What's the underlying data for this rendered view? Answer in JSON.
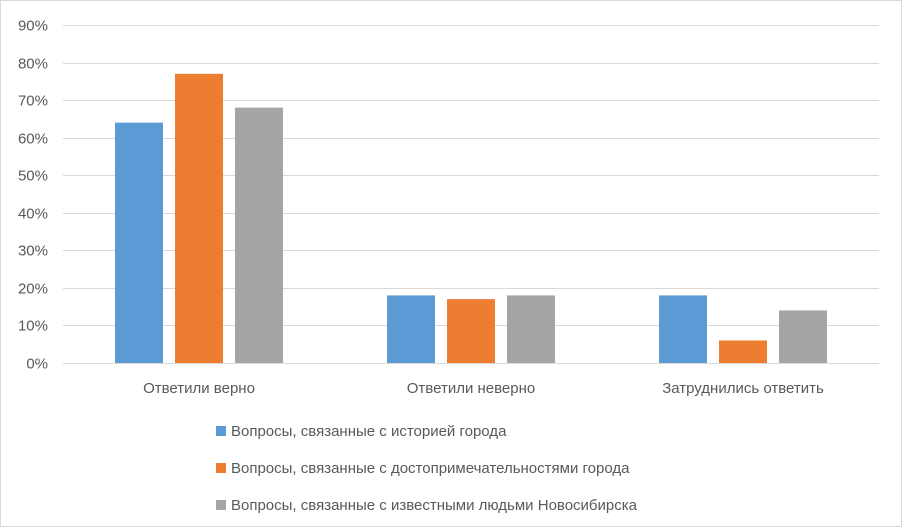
{
  "chart_data": {
    "type": "bar",
    "categories": [
      "Ответили верно",
      "Ответили неверно",
      "Затруднились ответить"
    ],
    "series": [
      {
        "name": "Вопросы, связанные с историей города",
        "values": [
          64,
          18,
          18
        ],
        "color": "#5b9bd5"
      },
      {
        "name": "Вопросы, связанные с достопримечательностями города",
        "values": [
          77,
          17,
          6
        ],
        "color": "#ed7d31"
      },
      {
        "name": "Вопросы, связанные с известными людьми Новосибирска",
        "values": [
          68,
          18,
          14
        ],
        "color": "#a5a5a5"
      }
    ],
    "ylim": [
      0,
      90
    ],
    "yticks": [
      "0%",
      "10%",
      "20%",
      "30%",
      "40%",
      "50%",
      "60%",
      "70%",
      "80%",
      "90%"
    ],
    "ytick_values": [
      0,
      10,
      20,
      30,
      40,
      50,
      60,
      70,
      80,
      90
    ],
    "title": "",
    "xlabel": "",
    "ylabel": "",
    "grid": true,
    "legend_position": "bottom"
  }
}
